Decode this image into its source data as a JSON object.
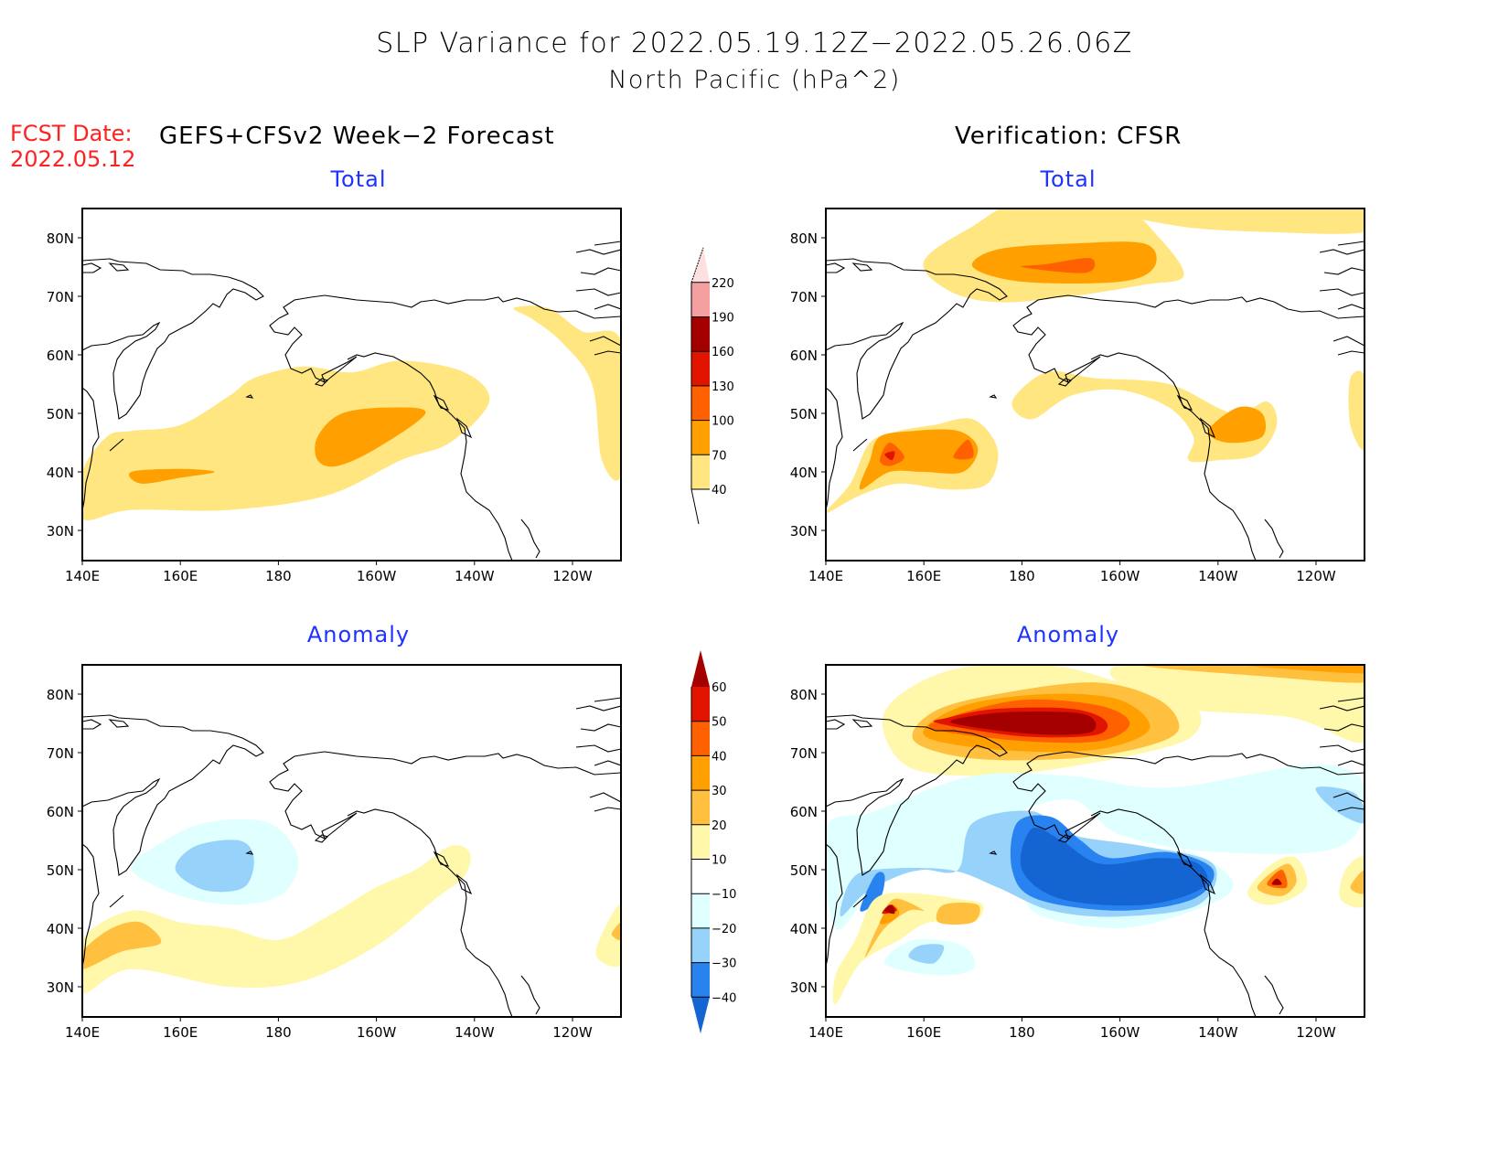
{
  "header": {
    "title_line1": "SLP Variance for 2022.05.19.12Z−2022.05.26.06Z",
    "title_line2": "North Pacific (hPa^2)",
    "fcst_label": "FCST Date:",
    "fcst_date": "2022.05.12",
    "left_heading": "GEFS+CFSv2 Week−2 Forecast",
    "right_heading": "Verification: CFSR"
  },
  "panels": {
    "forecast_total": {
      "title": "Total"
    },
    "verification_total": {
      "title": "Total"
    },
    "forecast_anomaly": {
      "title": "Anomaly"
    },
    "verification_anomaly": {
      "title": "Anomaly"
    }
  },
  "axes": {
    "lat_ticks": [
      "80N",
      "70N",
      "60N",
      "50N",
      "40N",
      "30N"
    ],
    "lon_ticks": [
      "140E",
      "160E",
      "180",
      "160W",
      "140W",
      "120W"
    ]
  },
  "colors": {
    "total": [
      "#ffe680",
      "#ffa000",
      "#ff6000",
      "#e11400",
      "#a50000",
      "#f5a0a0",
      "#ffe0e0"
    ],
    "anomaly_pos": [
      "#fff7aa",
      "#ffc040",
      "#ffa000",
      "#ff6000",
      "#e11400",
      "#a50000"
    ],
    "anomaly_neg": [
      "#e0ffff",
      "#96d2fa",
      "#2882f0",
      "#1464d2"
    ]
  },
  "chart_data": [
    {
      "type": "heatmap",
      "title": "Total",
      "group": "GEFS+CFSv2 Week-2 Forecast",
      "units": "hPa^2",
      "region": "North Pacific",
      "lat_range": [
        25,
        85
      ],
      "lon_range": [
        "140E",
        "110W"
      ],
      "contour_levels": [
        40,
        70,
        100,
        130,
        160,
        190,
        220
      ],
      "features": [
        {
          "desc": "broad 40-70 band from Japan (35N,140E) to Gulf of Alaska (55N,145W)",
          "level": 40
        },
        {
          "desc": "70-100 max near 45N,165W",
          "level": 70
        },
        {
          "desc": "70-100 max near 40N,155E",
          "level": 70
        },
        {
          "desc": "40-70 area over western Canada/Hudson Bay 40-68N 110-130W",
          "level": 40
        }
      ]
    },
    {
      "type": "heatmap",
      "title": "Total",
      "group": "Verification: CFSR",
      "units": "hPa^2",
      "region": "North Pacific",
      "lat_range": [
        25,
        85
      ],
      "lon_range": [
        "140E",
        "110W"
      ],
      "contour_levels": [
        40,
        70,
        100,
        130,
        160,
        190,
        220
      ],
      "features": [
        {
          "desc": "40-70 region over Arctic 70-85N, 155E-110W",
          "level": 40
        },
        {
          "desc": "70-100 max near 75N,175E with 100-130 core",
          "level": 100
        },
        {
          "desc": "40-70 off Japan, 70-100 core 38-47N 150E-175E with 130-160 peak near 43N,152E",
          "level": 130
        },
        {
          "desc": "40-70 arc across Aleutians to Gulf of Alaska, 70-100 near 48N,135W",
          "level": 70
        }
      ]
    },
    {
      "type": "heatmap",
      "title": "Anomaly",
      "group": "GEFS+CFSv2 Week-2 Forecast",
      "units": "hPa^2",
      "region": "North Pacific",
      "lat_range": [
        25,
        85
      ],
      "lon_range": [
        "140E",
        "110W"
      ],
      "contour_levels": [
        -40,
        -30,
        -20,
        -10,
        10,
        20,
        30,
        40,
        50,
        60
      ],
      "features": [
        {
          "desc": "negative -10 to -30 centered near 50N,170E",
          "level": -30
        },
        {
          "desc": "positive 10-20 band from 35N,140E to 50N,150W",
          "level": 10
        },
        {
          "desc": "20-30 near 38N,145E",
          "level": 20
        }
      ]
    },
    {
      "type": "heatmap",
      "title": "Anomaly",
      "group": "Verification: CFSR",
      "units": "hPa^2",
      "region": "North Pacific",
      "lat_range": [
        25,
        85
      ],
      "lon_range": [
        "140E",
        "110W"
      ],
      "contour_levels": [
        -40,
        -30,
        -20,
        -10,
        10,
        20,
        30,
        40,
        50,
        60
      ],
      "features": [
        {
          "desc": "strong positive >60 near 75N,180 over East Siberian Sea",
          "level": 60
        },
        {
          "desc": "strong negative < -40 across 42-55N, 175E-150W",
          "level": -40
        },
        {
          "desc": "positive >60 near 43N,152E off Kuril Is.",
          "level": 60
        },
        {
          "desc": "positive 50-60 near 48N,135W",
          "level": 50
        }
      ]
    }
  ],
  "colorbars": {
    "total": {
      "labels": [
        "220",
        "190",
        "160",
        "130",
        "100",
        "70",
        "40"
      ]
    },
    "anomaly": {
      "labels": [
        "60",
        "50",
        "40",
        "30",
        "20",
        "10",
        "−10",
        "−20",
        "−30",
        "−40"
      ]
    }
  }
}
